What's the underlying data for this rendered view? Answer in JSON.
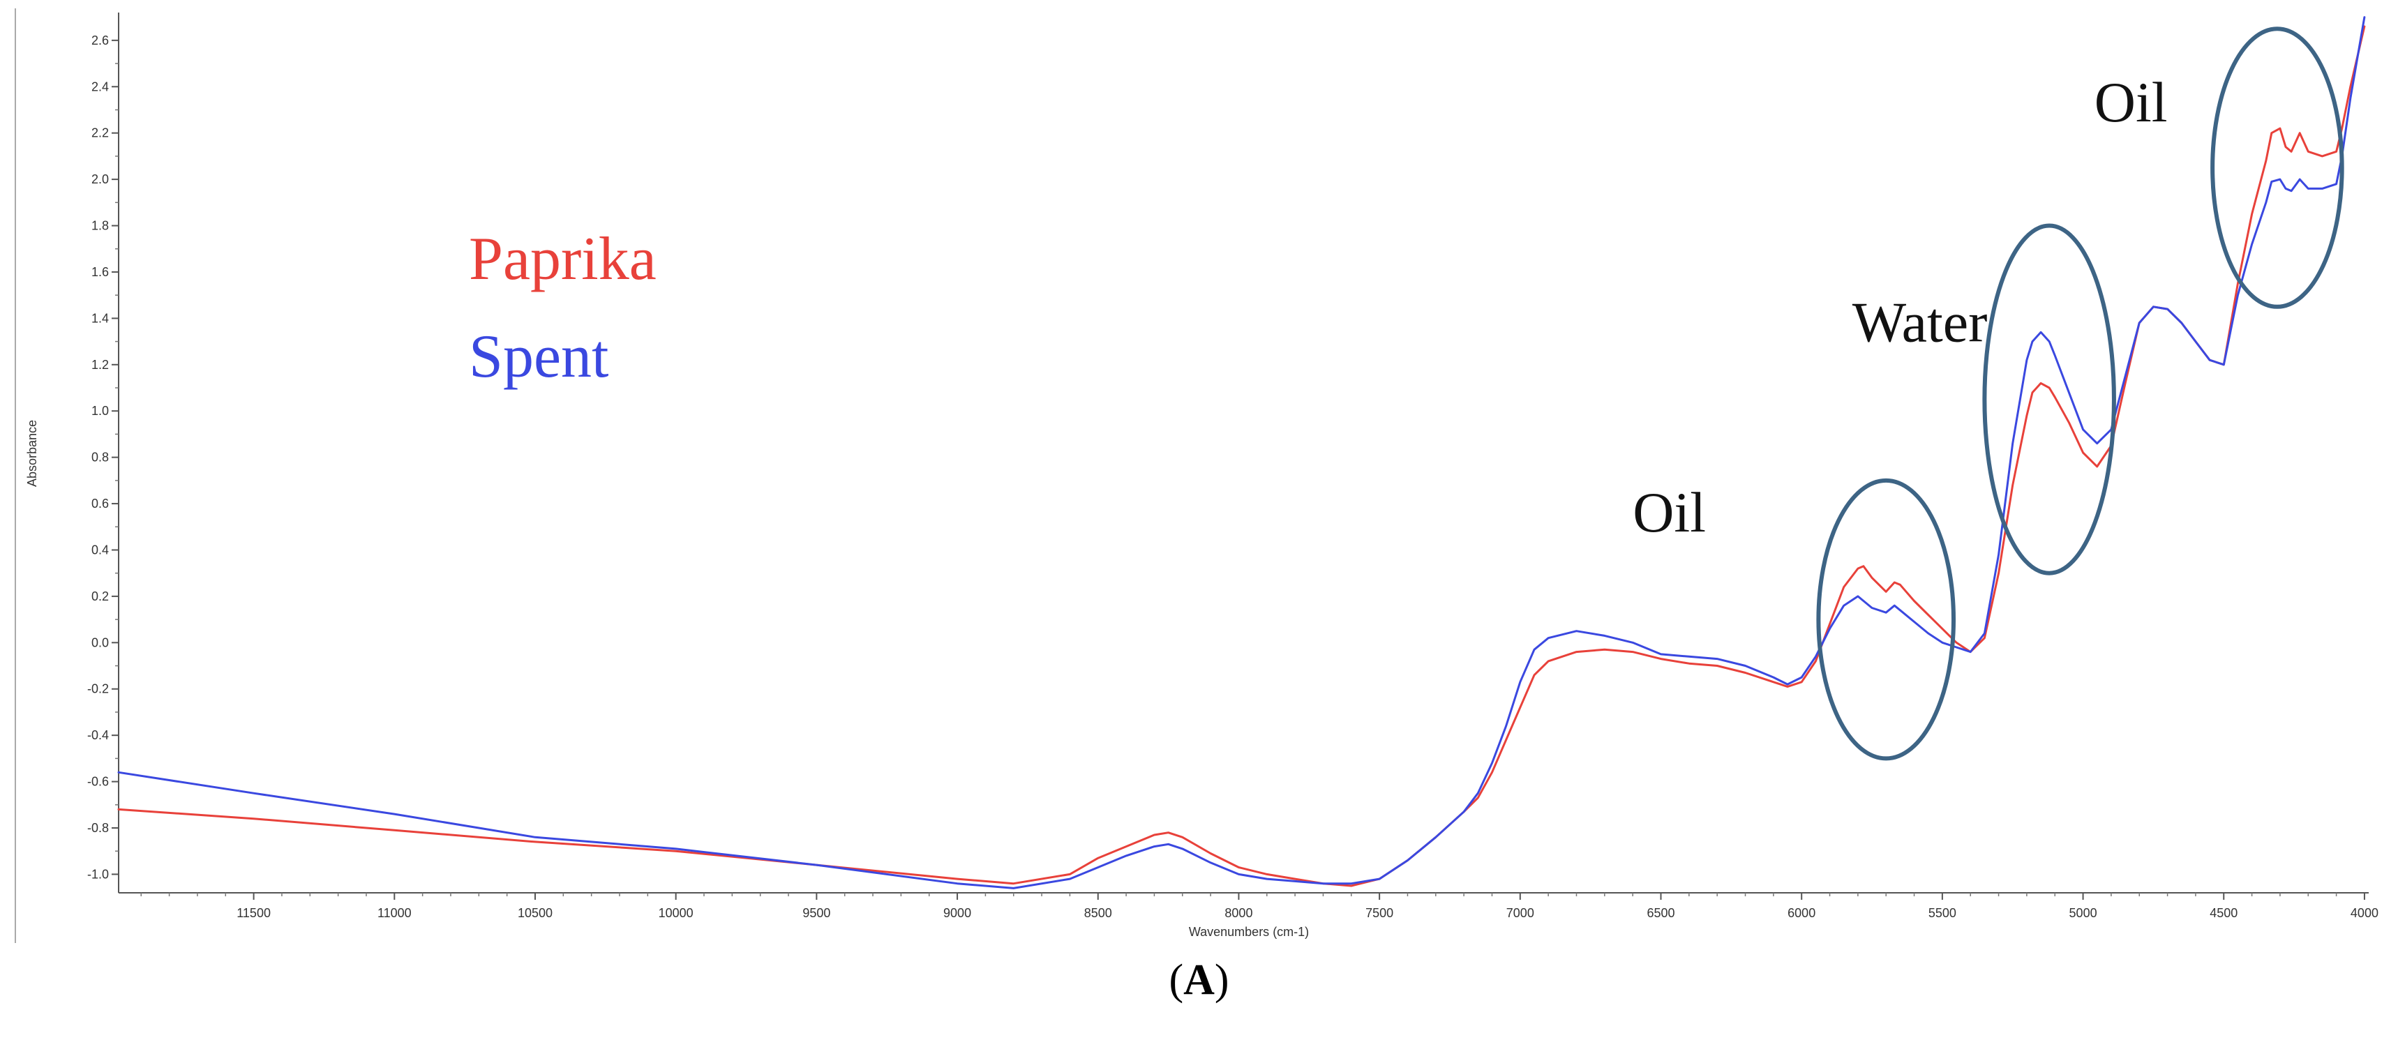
{
  "chart_data": {
    "type": "line",
    "title": "",
    "xlabel": "Wavenumbers (cm-1)",
    "ylabel": "Absorbance",
    "x_reversed": true,
    "xlim": [
      11980,
      3985
    ],
    "ylim": [
      -1.08,
      2.72
    ],
    "x_ticks": [
      11500,
      11000,
      10500,
      10000,
      9500,
      9000,
      8500,
      8000,
      7500,
      7000,
      6500,
      6000,
      5500,
      5000,
      4500,
      4000
    ],
    "y_ticks": [
      -1.0,
      -0.8,
      -0.6,
      -0.4,
      -0.2,
      0.0,
      0.2,
      0.4,
      0.6,
      0.8,
      1.0,
      1.2,
      1.4,
      1.6,
      1.8,
      2.0,
      2.2,
      2.4,
      2.6
    ],
    "grid": false,
    "legend_position": "top-left",
    "series": [
      {
        "name": "Paprika",
        "color": "#e8413a",
        "x": [
          11980,
          11500,
          11000,
          10500,
          10000,
          9500,
          9000,
          8800,
          8600,
          8500,
          8400,
          8300,
          8250,
          8200,
          8100,
          8000,
          7900,
          7800,
          7700,
          7600,
          7500,
          7400,
          7300,
          7200,
          7150,
          7100,
          7050,
          7000,
          6950,
          6900,
          6800,
          6700,
          6600,
          6500,
          6400,
          6300,
          6200,
          6100,
          6050,
          6000,
          5950,
          5900,
          5850,
          5800,
          5780,
          5750,
          5700,
          5670,
          5650,
          5600,
          5550,
          5500,
          5450,
          5400,
          5350,
          5300,
          5250,
          5200,
          5180,
          5150,
          5120,
          5100,
          5050,
          5000,
          4950,
          4900,
          4850,
          4800,
          4750,
          4700,
          4650,
          4600,
          4550,
          4500,
          4450,
          4400,
          4350,
          4330,
          4300,
          4280,
          4260,
          4230,
          4200,
          4150,
          4100,
          4080,
          4050,
          4000
        ],
        "values": [
          -0.72,
          -0.76,
          -0.81,
          -0.86,
          -0.9,
          -0.96,
          -1.02,
          -1.04,
          -1.0,
          -0.93,
          -0.88,
          -0.83,
          -0.82,
          -0.84,
          -0.91,
          -0.97,
          -1.0,
          -1.02,
          -1.04,
          -1.05,
          -1.02,
          -0.94,
          -0.84,
          -0.73,
          -0.67,
          -0.56,
          -0.42,
          -0.28,
          -0.14,
          -0.08,
          -0.04,
          -0.03,
          -0.04,
          -0.07,
          -0.09,
          -0.1,
          -0.13,
          -0.17,
          -0.19,
          -0.17,
          -0.08,
          0.08,
          0.24,
          0.32,
          0.33,
          0.28,
          0.22,
          0.26,
          0.25,
          0.18,
          0.12,
          0.06,
          0.0,
          -0.04,
          0.02,
          0.3,
          0.68,
          0.98,
          1.08,
          1.12,
          1.1,
          1.06,
          0.95,
          0.82,
          0.76,
          0.85,
          1.12,
          1.38,
          1.45,
          1.44,
          1.38,
          1.3,
          1.22,
          1.2,
          1.55,
          1.85,
          2.08,
          2.2,
          2.22,
          2.14,
          2.12,
          2.2,
          2.12,
          2.1,
          2.12,
          2.22,
          2.4,
          2.66
        ]
      },
      {
        "name": "Spent",
        "color": "#3a48e0",
        "x": [
          11980,
          11500,
          11000,
          10500,
          10000,
          9500,
          9000,
          8800,
          8600,
          8500,
          8400,
          8300,
          8250,
          8200,
          8100,
          8000,
          7900,
          7800,
          7700,
          7600,
          7500,
          7400,
          7300,
          7200,
          7150,
          7100,
          7050,
          7000,
          6950,
          6900,
          6800,
          6700,
          6600,
          6500,
          6400,
          6300,
          6200,
          6100,
          6050,
          6000,
          5950,
          5900,
          5850,
          5800,
          5780,
          5750,
          5700,
          5670,
          5650,
          5600,
          5550,
          5500,
          5450,
          5400,
          5350,
          5300,
          5250,
          5200,
          5180,
          5150,
          5120,
          5100,
          5050,
          5000,
          4950,
          4900,
          4850,
          4800,
          4750,
          4700,
          4650,
          4600,
          4550,
          4500,
          4450,
          4400,
          4350,
          4330,
          4300,
          4280,
          4260,
          4230,
          4200,
          4150,
          4100,
          4080,
          4050,
          4000
        ],
        "values": [
          -0.56,
          -0.65,
          -0.74,
          -0.84,
          -0.89,
          -0.96,
          -1.04,
          -1.06,
          -1.02,
          -0.97,
          -0.92,
          -0.88,
          -0.87,
          -0.89,
          -0.95,
          -1.0,
          -1.02,
          -1.03,
          -1.04,
          -1.04,
          -1.02,
          -0.94,
          -0.84,
          -0.73,
          -0.65,
          -0.52,
          -0.36,
          -0.17,
          -0.03,
          0.02,
          0.05,
          0.03,
          0.0,
          -0.05,
          -0.06,
          -0.07,
          -0.1,
          -0.15,
          -0.18,
          -0.15,
          -0.06,
          0.06,
          0.16,
          0.2,
          0.18,
          0.15,
          0.13,
          0.16,
          0.14,
          0.09,
          0.04,
          0.0,
          -0.02,
          -0.04,
          0.04,
          0.38,
          0.86,
          1.22,
          1.3,
          1.34,
          1.3,
          1.24,
          1.08,
          0.92,
          0.86,
          0.92,
          1.15,
          1.38,
          1.45,
          1.44,
          1.38,
          1.3,
          1.22,
          1.2,
          1.5,
          1.72,
          1.9,
          1.99,
          2.0,
          1.96,
          1.95,
          2.0,
          1.96,
          1.96,
          1.98,
          2.1,
          2.35,
          2.7
        ]
      }
    ],
    "legend": [
      {
        "label": "Paprika",
        "color": "#e8413a"
      },
      {
        "label": "Spent",
        "color": "#3a48e0"
      }
    ],
    "annotations": [
      {
        "label": "Oil",
        "x": 6470,
        "y": 0.48
      },
      {
        "label": "Water",
        "x": 5580,
        "y": 1.3
      },
      {
        "label": "Oil",
        "x": 4830,
        "y": 2.25
      }
    ],
    "highlight_regions": [
      {
        "center_x": 5700,
        "center_y": 0.1,
        "rx": 240,
        "ry": 0.6
      },
      {
        "center_x": 5120,
        "center_y": 1.05,
        "rx": 230,
        "ry": 0.75
      },
      {
        "center_x": 4310,
        "center_y": 2.05,
        "rx": 230,
        "ry": 0.6
      }
    ],
    "highlight_color": "#3d6485"
  },
  "panel_label": {
    "open": "(",
    "letter": "A",
    "close": ")"
  }
}
